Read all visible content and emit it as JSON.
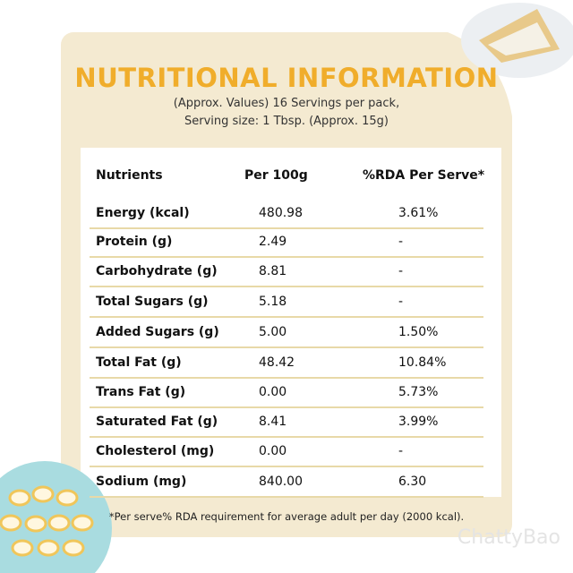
{
  "header": {
    "title": "NUTRITIONAL INFORMATION",
    "subtitle": [
      "(Approx. Values) 16 Servings per pack,",
      "Serving size: 1 Tbsp. (Approx. 15g)"
    ]
  },
  "table": {
    "columns": [
      "Nutrients",
      "Per 100g",
      "%RDA Per Serve*"
    ],
    "rows": [
      [
        "Energy (kcal)",
        "480.98",
        "3.61%"
      ],
      [
        "Protein (g)",
        "2.49",
        "-"
      ],
      [
        "Carbohydrate (g)",
        "8.81",
        "-"
      ],
      [
        "Total Sugars (g)",
        "5.18",
        "-"
      ],
      [
        "Added Sugars (g)",
        "5.00",
        "1.50%"
      ],
      [
        "Total Fat (g)",
        "48.42",
        "10.84%"
      ],
      [
        "Trans Fat (g)",
        "0.00",
        "5.73%"
      ],
      [
        "Saturated Fat (g)",
        "8.41",
        "3.99%"
      ],
      [
        "Cholesterol (mg)",
        "0.00",
        "-"
      ],
      [
        "Sodium (mg)",
        "840.00",
        "6.30"
      ]
    ]
  },
  "footnote": "*Per serve% RDA requirement for average adult per day (2000 kcal).",
  "watermark": "ChattyBao"
}
